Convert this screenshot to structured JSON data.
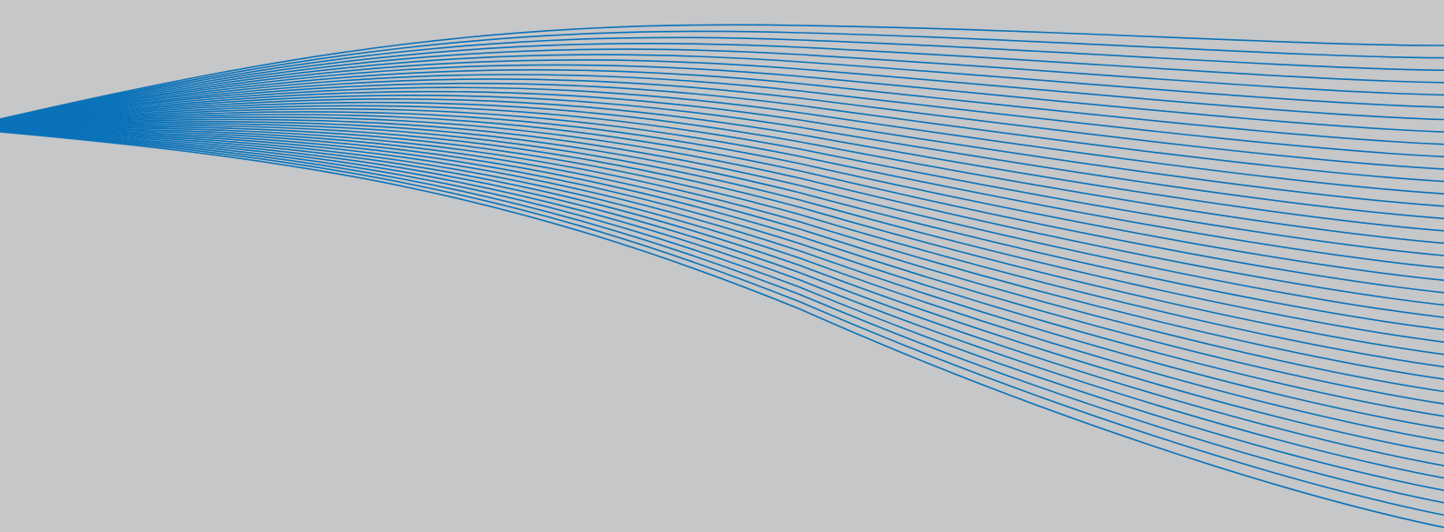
{
  "background": {
    "color": "#c6c7c9"
  },
  "wave": {
    "stroke_color": "#0a72b9",
    "line_count": 40
  }
}
